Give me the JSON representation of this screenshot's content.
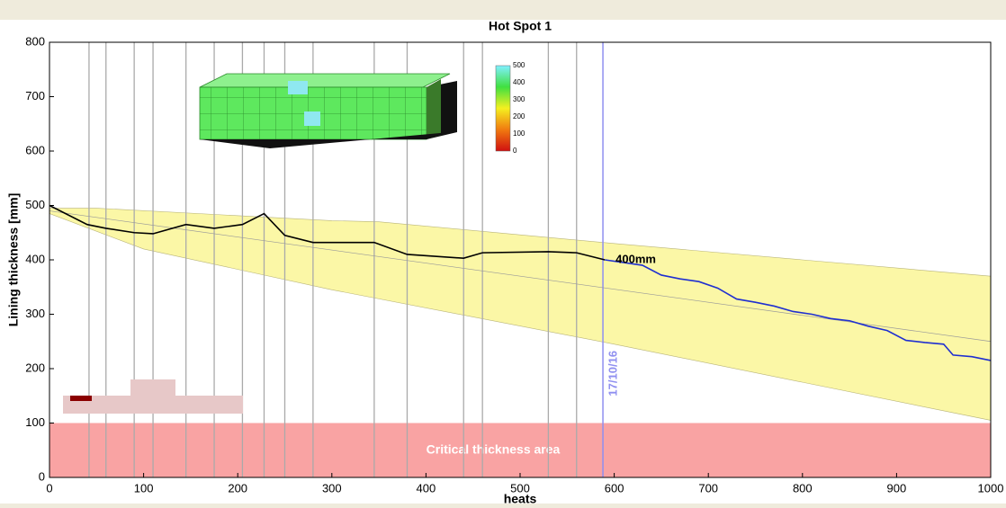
{
  "chart_data": {
    "type": "line",
    "title": "Hot Spot 1",
    "x_label": "heats",
    "y_label": "Lining thickness [mm]",
    "xlim": [
      0,
      1000
    ],
    "ylim": [
      0,
      800
    ],
    "xticks": [
      0,
      100,
      200,
      300,
      400,
      500,
      600,
      700,
      800,
      900,
      1000
    ],
    "yticks": [
      0,
      100,
      200,
      300,
      400,
      500,
      600,
      700,
      800
    ],
    "band": {
      "color": "#fbf7a6",
      "x": [
        0,
        50,
        300,
        350,
        600,
        1000
      ],
      "upper": [
        495,
        495,
        472,
        470,
        430,
        370
      ],
      "lower_x": [
        0,
        100,
        300,
        600,
        800,
        1000
      ],
      "lower": [
        485,
        420,
        345,
        245,
        175,
        105
      ]
    },
    "series": [
      {
        "color": "#999999",
        "x": [
          0,
          1000
        ],
        "values": [
          490,
          250
        ]
      },
      {
        "color": "#000000",
        "x": [
          0,
          40,
          60,
          90,
          110,
          145,
          175,
          205,
          228,
          250,
          280,
          345,
          380,
          440,
          460,
          530,
          560,
          590
        ],
        "values": [
          500,
          465,
          458,
          450,
          448,
          465,
          458,
          465,
          485,
          445,
          432,
          432,
          410,
          403,
          413,
          415,
          413,
          400
        ]
      },
      {
        "color": "#1f2fd0",
        "x": [
          590,
          630,
          650,
          670,
          690,
          710,
          730,
          750,
          770,
          790,
          810,
          830,
          850,
          870,
          890,
          910,
          930,
          950,
          960,
          980,
          1000
        ],
        "values": [
          400,
          390,
          372,
          365,
          360,
          348,
          328,
          322,
          315,
          305,
          300,
          292,
          288,
          278,
          270,
          252,
          248,
          245,
          225,
          222,
          215
        ]
      }
    ],
    "annotation": "400mm",
    "heat_markers": [
      42,
      60,
      90,
      110,
      145,
      175,
      205,
      228,
      250,
      280,
      345,
      380,
      440,
      460,
      530,
      560
    ],
    "current": {
      "x": 588,
      "label": "17/10/16",
      "color": "#8f8ff0"
    },
    "critical_area": {
      "label": "Critical thickness area",
      "from": 0,
      "to": 100,
      "color": "#f9a3a3"
    },
    "colorbar": {
      "lim": [
        0,
        500
      ],
      "ticks": [
        0,
        100,
        200,
        300,
        400,
        500
      ]
    }
  }
}
